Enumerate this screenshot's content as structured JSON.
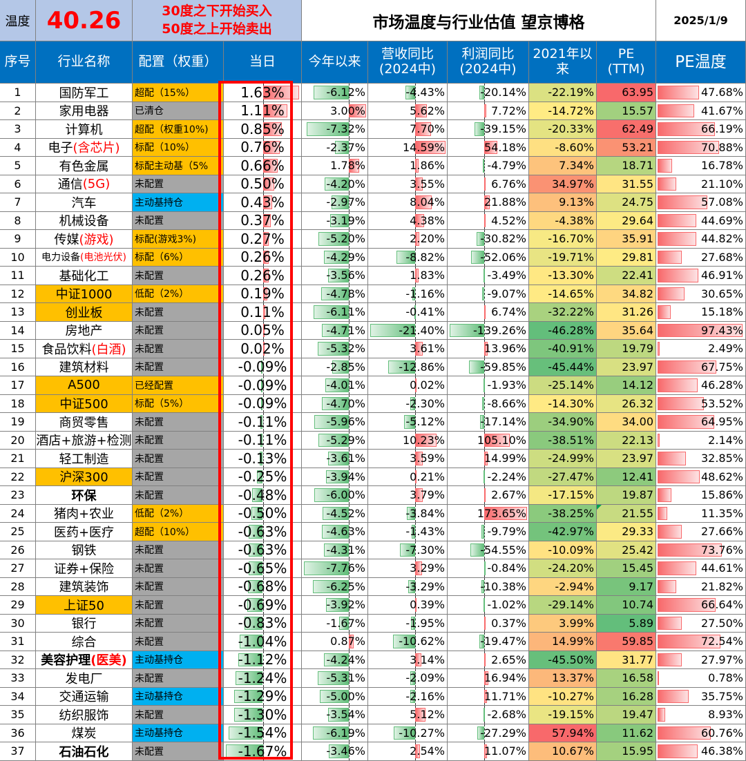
{
  "header": {
    "temp_label": "温度",
    "temp_value": "40.26",
    "rule_line1": "30度之下开始买入",
    "rule_line2": "50度之上开始卖出",
    "title": "市场温度与行业估值 望京博格",
    "date": "2025/1/9"
  },
  "columns": {
    "idx": "序号",
    "name": "行业名称",
    "alloc": "配置（权重）",
    "day": "当日",
    "ytd": "今年以来",
    "rev": [
      "营收同比",
      "(2024中)"
    ],
    "profit": [
      "利润同比",
      "(2024中)"
    ],
    "since2021": [
      "2021年以",
      "来"
    ],
    "pe": [
      "PE",
      "(TTM)"
    ],
    "pe_temp": "PE温度"
  },
  "colors": {
    "header_blue": "#0070c0",
    "highlight_orange": "#ffc000",
    "gray": "#a6a6a6",
    "cyan": "#00b0f0",
    "red": "#ff0000",
    "bar_red": "#f8696b",
    "bar_green": "#63be7b"
  },
  "rows": [
    {
      "idx": "1",
      "name": [
        [
          "国防军工",
          0
        ]
      ],
      "name_bg": "white",
      "alloc": "超配（15%）",
      "alloc_bg": "orange",
      "day": 1.63,
      "ytd": -6.12,
      "rev": -4.43,
      "profit": -20.14,
      "since2021": -22.19,
      "pe": 63.95,
      "pe_temp": 47.68
    },
    {
      "idx": "2",
      "name": [
        [
          "家用电器",
          0
        ]
      ],
      "name_bg": "white",
      "alloc": "已清仓",
      "alloc_bg": "gray",
      "day": 1.11,
      "ytd": 3.0,
      "rev": 5.62,
      "profit": 7.72,
      "since2021": -14.72,
      "pe": 15.57,
      "pe_temp": 41.67
    },
    {
      "idx": "3",
      "name": [
        [
          "计算机",
          0
        ]
      ],
      "name_bg": "white",
      "alloc": "超配（权重10%)",
      "alloc_bg": "orange",
      "day": 0.85,
      "ytd": -7.32,
      "rev": 7.7,
      "profit": -39.15,
      "since2021": -20.33,
      "pe": 62.49,
      "pe_temp": 66.19
    },
    {
      "idx": "4",
      "name": [
        [
          "电子",
          0
        ],
        [
          "(含芯片)",
          1
        ]
      ],
      "name_bg": "white",
      "alloc": "标配（10%）",
      "alloc_bg": "orange",
      "day": 0.76,
      "ytd": -2.37,
      "rev": 14.59,
      "profit": 54.18,
      "since2021": -8.6,
      "pe": 53.21,
      "pe_temp": 70.88
    },
    {
      "idx": "5",
      "name": [
        [
          "有色金属",
          0
        ]
      ],
      "name_bg": "white",
      "alloc": "标配主动基（5%",
      "alloc_bg": "orange",
      "day": 0.66,
      "ytd": 1.78,
      "rev": 1.86,
      "profit": -4.79,
      "since2021": 7.34,
      "pe": 18.71,
      "pe_temp": 16.78
    },
    {
      "idx": "6",
      "name": [
        [
          "通信",
          0
        ],
        [
          "(5G)",
          1
        ]
      ],
      "name_bg": "white",
      "alloc": "未配置",
      "alloc_bg": "gray",
      "day": 0.5,
      "ytd": -4.2,
      "rev": 3.55,
      "profit": 6.76,
      "since2021": 34.97,
      "pe": 31.55,
      "pe_temp": 21.1
    },
    {
      "idx": "7",
      "name": [
        [
          "汽车",
          0
        ]
      ],
      "name_bg": "white",
      "alloc": "主动基持仓",
      "alloc_bg": "cyan",
      "day": 0.43,
      "ytd": -2.97,
      "rev": 8.04,
      "profit": 21.88,
      "since2021": 9.13,
      "pe": 24.75,
      "pe_temp": 57.08
    },
    {
      "idx": "8",
      "name": [
        [
          "机械设备",
          0
        ]
      ],
      "name_bg": "white",
      "alloc": "未配置",
      "alloc_bg": "gray",
      "day": 0.37,
      "ytd": -3.19,
      "rev": 4.38,
      "profit": 4.52,
      "since2021": -4.38,
      "pe": 29.64,
      "pe_temp": 44.69
    },
    {
      "idx": "9",
      "name": [
        [
          "传媒",
          0
        ],
        [
          "(游戏)",
          1
        ]
      ],
      "name_bg": "white",
      "alloc": "标配(游戏3%)",
      "alloc_bg": "orange",
      "day": 0.27,
      "ytd": -5.2,
      "rev": 2.2,
      "profit": -30.82,
      "since2021": -16.7,
      "pe": 35.91,
      "pe_temp": 44.82
    },
    {
      "idx": "10",
      "name": [
        [
          "电力设备",
          0
        ],
        [
          "(电池光伏)",
          1
        ]
      ],
      "name_small": true,
      "name_bg": "white",
      "alloc": "标配（6%）",
      "alloc_bg": "orange",
      "day": 0.26,
      "ytd": -4.29,
      "rev": -8.82,
      "profit": -52.06,
      "since2021": -19.71,
      "pe": 29.81,
      "pe_temp": 27.68
    },
    {
      "idx": "11",
      "name": [
        [
          "基础化工",
          0
        ]
      ],
      "name_bg": "white",
      "alloc": "未配置",
      "alloc_bg": "gray",
      "day": 0.26,
      "ytd": -3.56,
      "rev": 1.83,
      "profit": -3.49,
      "since2021": -13.3,
      "pe": 22.41,
      "pe_temp": 46.91
    },
    {
      "idx": "12",
      "name": [
        [
          "中证1000",
          0
        ]
      ],
      "name_bg": "orange",
      "alloc": "低配（2%）",
      "alloc_bg": "orange",
      "day": 0.19,
      "ytd": -4.78,
      "rev": -1.16,
      "profit": -9.07,
      "since2021": -14.65,
      "pe": 34.82,
      "pe_temp": 30.65
    },
    {
      "idx": "13",
      "name": [
        [
          "创业板",
          0
        ]
      ],
      "name_bg": "orange",
      "alloc": "未配置",
      "alloc_bg": "gray",
      "day": 0.11,
      "ytd": -6.11,
      "rev": -0.41,
      "profit": 6.74,
      "since2021": -32.22,
      "pe": 31.26,
      "pe_temp": 15.18
    },
    {
      "idx": "14",
      "name": [
        [
          "房地产",
          0
        ]
      ],
      "name_bg": "white",
      "alloc": "未配置",
      "alloc_bg": "gray",
      "day": 0.05,
      "ytd": -4.71,
      "rev": -21.4,
      "profit": -139.26,
      "since2021": -46.28,
      "pe": 35.64,
      "pe_temp": 97.43
    },
    {
      "idx": "15",
      "name": [
        [
          "食品饮料",
          0
        ],
        [
          "(白酒)",
          1
        ]
      ],
      "name_bg": "white",
      "alloc": "未配置",
      "alloc_bg": "gray",
      "day": 0.02,
      "ytd": -5.32,
      "rev": 3.61,
      "profit": 13.96,
      "since2021": -40.91,
      "pe": 19.79,
      "pe_temp": 2.49
    },
    {
      "idx": "16",
      "name": [
        [
          "建筑材料",
          0
        ]
      ],
      "name_bg": "white",
      "alloc": "未配置",
      "alloc_bg": "gray",
      "day": -0.09,
      "ytd": -2.85,
      "rev": -12.86,
      "profit": -59.85,
      "since2021": -45.44,
      "pe": 23.97,
      "pe_temp": 67.75
    },
    {
      "idx": "17",
      "name": [
        [
          "A500",
          0
        ]
      ],
      "name_bg": "orange",
      "alloc": "已经配置",
      "alloc_bg": "orange",
      "day": -0.09,
      "ytd": -4.01,
      "rev": 0.02,
      "profit": -1.93,
      "since2021": -25.14,
      "pe": 14.12,
      "pe_temp": 46.28
    },
    {
      "idx": "18",
      "name": [
        [
          "中证500",
          0
        ]
      ],
      "name_bg": "orange",
      "alloc": "标配（5%）",
      "alloc_bg": "orange",
      "day": -0.09,
      "ytd": -4.7,
      "rev": -2.3,
      "profit": -8.66,
      "since2021": -14.3,
      "pe": 26.32,
      "pe_temp": 53.52
    },
    {
      "idx": "19",
      "name": [
        [
          "商贸零售",
          0
        ]
      ],
      "name_bg": "white",
      "alloc": "未配置",
      "alloc_bg": "gray",
      "day": -0.11,
      "ytd": -5.96,
      "rev": -5.12,
      "profit": -17.14,
      "since2021": -34.9,
      "pe": 34.0,
      "pe_temp": 64.95
    },
    {
      "idx": "20",
      "name": [
        [
          "酒店+旅游+检测",
          0
        ]
      ],
      "name_bg": "white",
      "alloc": "未配置",
      "alloc_bg": "gray",
      "day": -0.11,
      "ytd": -5.29,
      "rev": 10.23,
      "profit": 105.1,
      "since2021": -38.51,
      "pe": 22.13,
      "pe_temp": 2.14
    },
    {
      "idx": "21",
      "name": [
        [
          "轻工制造",
          0
        ]
      ],
      "name_bg": "white",
      "alloc": "未配置",
      "alloc_bg": "gray",
      "day": -0.13,
      "ytd": -3.61,
      "rev": 3.59,
      "profit": 14.99,
      "since2021": -24.99,
      "pe": 23.97,
      "pe_temp": 32.85
    },
    {
      "idx": "22",
      "name": [
        [
          "沪深300",
          0
        ]
      ],
      "name_bg": "orange",
      "alloc": "未配置",
      "alloc_bg": "gray",
      "day": -0.25,
      "ytd": -3.94,
      "rev": 0.21,
      "profit": -2.24,
      "since2021": -27.47,
      "pe": 12.41,
      "pe_temp": 48.62
    },
    {
      "idx": "23",
      "name": [
        [
          "环保",
          0
        ]
      ],
      "name_bg": "white",
      "name_bold": true,
      "alloc": "未配置",
      "alloc_bg": "gray",
      "day": -0.48,
      "ytd": -6.0,
      "rev": 3.79,
      "profit": 2.67,
      "since2021": -17.15,
      "pe": 19.87,
      "pe_temp": 15.86
    },
    {
      "idx": "24",
      "name": [
        [
          "猪肉+农业",
          0
        ]
      ],
      "name_bg": "white",
      "alloc": "低配（2%）",
      "alloc_bg": "orange",
      "day": -0.5,
      "ytd": -4.52,
      "rev": -3.84,
      "profit": 173.65,
      "since2021": -38.25,
      "pe": 21.55,
      "pe_temp": 11.35,
      "pe_marker": true
    },
    {
      "idx": "25",
      "name": [
        [
          "医药+医疗",
          0
        ]
      ],
      "name_bg": "white",
      "alloc": "超配（10%）",
      "alloc_bg": "orange",
      "day": -0.63,
      "ytd": -4.63,
      "rev": -1.43,
      "profit": -9.79,
      "since2021": -42.97,
      "pe": 29.33,
      "pe_temp": 27.66
    },
    {
      "idx": "26",
      "name": [
        [
          "钢铁",
          0
        ]
      ],
      "name_bg": "white",
      "alloc": "未配置",
      "alloc_bg": "gray",
      "day": -0.63,
      "ytd": -4.31,
      "rev": -7.3,
      "profit": -54.55,
      "since2021": -10.09,
      "pe": 25.42,
      "pe_temp": 73.76
    },
    {
      "idx": "27",
      "name": [
        [
          "证券+保险",
          0
        ]
      ],
      "name_bg": "white",
      "alloc": "未配置",
      "alloc_bg": "gray",
      "day": -0.65,
      "ytd": -7.76,
      "rev": 3.29,
      "profit": -0.84,
      "since2021": -24.2,
      "pe": 15.45,
      "pe_temp": 44.61
    },
    {
      "idx": "28",
      "name": [
        [
          "建筑装饰",
          0
        ]
      ],
      "name_bg": "white",
      "alloc": "未配置",
      "alloc_bg": "gray",
      "day": -0.68,
      "ytd": -6.25,
      "rev": -3.29,
      "profit": -10.38,
      "since2021": -2.94,
      "pe": 9.17,
      "pe_temp": 21.82
    },
    {
      "idx": "29",
      "name": [
        [
          "上证50",
          0
        ]
      ],
      "name_bg": "orange",
      "alloc": "未配置",
      "alloc_bg": "gray",
      "day": -0.69,
      "ytd": -3.92,
      "rev": 0.39,
      "profit": -1.02,
      "since2021": -29.14,
      "pe": 10.74,
      "pe_temp": 66.64
    },
    {
      "idx": "30",
      "name": [
        [
          "银行",
          0
        ]
      ],
      "name_bg": "white",
      "alloc": "未配置",
      "alloc_bg": "gray",
      "day": -0.83,
      "ytd": -1.67,
      "rev": -1.95,
      "profit": 0.37,
      "since2021": 3.99,
      "pe": 5.89,
      "pe_temp": 27.5
    },
    {
      "idx": "31",
      "name": [
        [
          "综合",
          0
        ]
      ],
      "name_bg": "white",
      "alloc": "未配置",
      "alloc_bg": "gray",
      "day": -1.04,
      "ytd": 0.87,
      "rev": -10.62,
      "profit": -19.47,
      "since2021": 14.99,
      "pe": 59.85,
      "pe_temp": 72.54
    },
    {
      "idx": "32",
      "name": [
        [
          "美容护理",
          0
        ],
        [
          "(医美)",
          1
        ]
      ],
      "name_bg": "white",
      "name_bold": true,
      "alloc": "主动基持仓",
      "alloc_bg": "cyan",
      "day": -1.12,
      "ytd": -4.24,
      "rev": 3.14,
      "profit": 2.65,
      "since2021": -45.5,
      "pe": 31.77,
      "pe_temp": 27.97
    },
    {
      "idx": "33",
      "name": [
        [
          "发电厂",
          0
        ]
      ],
      "name_bg": "white",
      "alloc": "未配置",
      "alloc_bg": "gray",
      "day": -1.24,
      "ytd": -5.31,
      "rev": -2.09,
      "profit": 16.94,
      "since2021": 13.37,
      "pe": 16.58,
      "pe_temp": 0.78
    },
    {
      "idx": "34",
      "name": [
        [
          "交通运输",
          0
        ]
      ],
      "name_bg": "white",
      "alloc": "主动基持仓",
      "alloc_bg": "cyan",
      "day": -1.29,
      "ytd": -5.0,
      "rev": -2.16,
      "profit": 11.71,
      "since2021": -10.27,
      "pe": 16.28,
      "pe_temp": 35.75
    },
    {
      "idx": "35",
      "name": [
        [
          "纺织服饰",
          0
        ]
      ],
      "name_bg": "white",
      "alloc": "未配置",
      "alloc_bg": "gray",
      "day": -1.3,
      "ytd": -3.54,
      "rev": 5.12,
      "profit": -2.68,
      "since2021": -19.15,
      "pe": 19.47,
      "pe_temp": 8.93
    },
    {
      "idx": "36",
      "name": [
        [
          "煤炭",
          0
        ]
      ],
      "name_bg": "white",
      "alloc": "主动基持仓",
      "alloc_bg": "cyan",
      "day": -1.54,
      "ytd": -6.19,
      "rev": -10.27,
      "profit": -27.29,
      "since2021": 57.94,
      "pe": 11.62,
      "pe_temp": 60.76
    },
    {
      "idx": "37",
      "name": [
        [
          "石油石化",
          0
        ]
      ],
      "name_bg": "white",
      "name_bold": true,
      "alloc": "未配置",
      "alloc_bg": "gray",
      "day": -1.67,
      "ytd": -3.46,
      "rev": 2.54,
      "profit": 11.07,
      "since2021": 10.67,
      "pe": 15.95,
      "pe_temp": 46.38
    }
  ]
}
